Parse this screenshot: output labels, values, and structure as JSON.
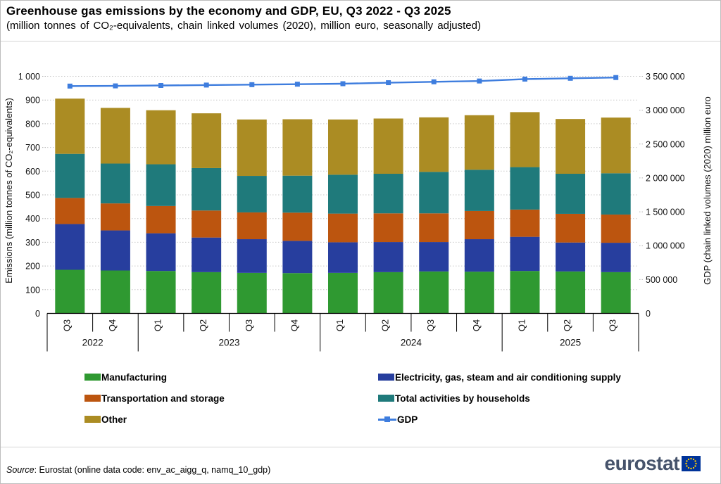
{
  "chart_data": {
    "type": "bar",
    "subtype": "stacked-bars-with-line-overlay",
    "title": "Greenhouse gas emissions by the economy and GDP, EU, Q3 2022 - Q3 2025",
    "subtitle": "(million tonnes of CO₂-equivalents, chain linked volumes (2020), million euro, seasonally adjusted)",
    "categories": [
      "Q3",
      "Q4",
      "Q1",
      "Q2",
      "Q3",
      "Q4",
      "Q1",
      "Q2",
      "Q3",
      "Q4",
      "Q1",
      "Q2",
      "Q3"
    ],
    "year_groups": [
      {
        "label": "2022",
        "count": 2
      },
      {
        "label": "2023",
        "count": 4
      },
      {
        "label": "2024",
        "count": 4
      },
      {
        "label": "2025",
        "count": 3
      }
    ],
    "bar_series": [
      {
        "name": "Manufacturing",
        "color": "#2f9931",
        "values": [
          184,
          181,
          179,
          174,
          171,
          170,
          171,
          174,
          177,
          176,
          179,
          177,
          174
        ]
      },
      {
        "name": "Electricity, gas, steam and air conditioning supply",
        "color": "#273e9e",
        "values": [
          193,
          169,
          159,
          146,
          142,
          136,
          129,
          127,
          124,
          137,
          144,
          122,
          124
        ]
      },
      {
        "name": "Transportation and storage",
        "color": "#bc550f",
        "values": [
          110,
          114,
          115,
          114,
          113,
          119,
          121,
          121,
          121,
          119,
          115,
          121,
          119
        ]
      },
      {
        "name": "Total activities by households",
        "color": "#1f7a7b",
        "values": [
          186,
          168,
          176,
          179,
          154,
          156,
          164,
          167,
          175,
          174,
          179,
          169,
          174
        ]
      },
      {
        "name": "Other",
        "color": "#ab8c23",
        "values": [
          233,
          235,
          228,
          231,
          238,
          238,
          233,
          233,
          230,
          230,
          232,
          231,
          235
        ]
      }
    ],
    "line_series": {
      "name": "GDP",
      "color": "#3e7dde",
      "axis": "right",
      "values": [
        3356000,
        3359000,
        3365000,
        3371000,
        3377000,
        3384000,
        3391000,
        3406000,
        3419000,
        3431000,
        3459000,
        3471000,
        3482000
      ]
    },
    "left_axis": {
      "title": "Emissions (million tonnes of CO₂-equivalents)",
      "min": 0,
      "max": 1000,
      "step": 100,
      "tick_labels": [
        "0",
        "100",
        "200",
        "300",
        "400",
        "500",
        "600",
        "700",
        "800",
        "900",
        "1 000"
      ]
    },
    "right_axis": {
      "title": "GDP (chain linked volumes (2020) million euro",
      "min": 0,
      "max": 3500000,
      "step": 500000,
      "tick_labels": [
        "0",
        "500 000",
        "1 000 000",
        "1 500 000",
        "2 000 000",
        "2 500 000",
        "3 000 000",
        "3 500 000"
      ]
    },
    "legend_columns": [
      [
        "Manufacturing",
        "Transportation and storage",
        "Other"
      ],
      [
        "Electricity, gas, steam and air conditioning supply",
        "Total activities by households",
        "GDP"
      ]
    ],
    "grid": "horizontal-dotted",
    "legend_position": "bottom"
  },
  "footer": {
    "source_label": "Source",
    "source_text": ": Eurostat (online data code: env_ac_aigg_q, namq_10_gdp)",
    "logo_text": "eurostat"
  }
}
